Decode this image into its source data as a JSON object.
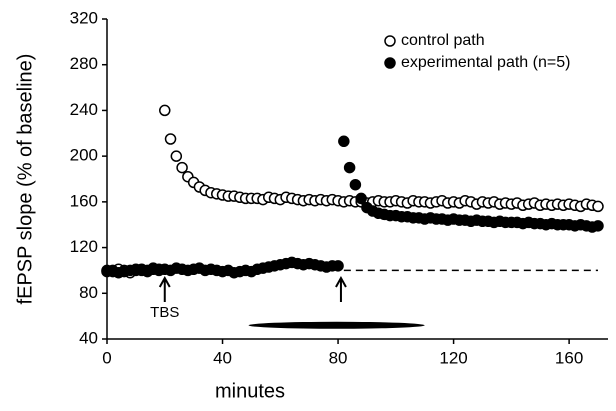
{
  "chart_data": {
    "type": "scatter",
    "x_label": "minutes",
    "y_label": "fEPSP slope (% of baseline)",
    "xlim": [
      0,
      170
    ],
    "xticks": [
      0,
      40,
      80,
      120,
      160
    ],
    "ylim": [
      40,
      320
    ],
    "yticks": [
      40,
      80,
      120,
      160,
      200,
      240,
      280,
      320
    ],
    "legend": "top-right",
    "x": [
      0,
      2,
      4,
      6,
      8,
      10,
      12,
      14,
      16,
      18,
      20,
      22,
      24,
      26,
      28,
      30,
      32,
      34,
      36,
      38,
      40,
      42,
      44,
      46,
      48,
      50,
      52,
      54,
      56,
      58,
      60,
      62,
      64,
      66,
      68,
      70,
      72,
      74,
      76,
      78,
      80,
      82,
      84,
      86,
      88,
      90,
      92,
      94,
      96,
      98,
      100,
      102,
      104,
      106,
      108,
      110,
      112,
      114,
      116,
      118,
      120,
      122,
      124,
      126,
      128,
      130,
      132,
      134,
      136,
      138,
      140,
      142,
      144,
      146,
      148,
      150,
      152,
      154,
      156,
      158,
      160,
      162,
      164,
      166,
      168,
      170
    ],
    "series": [
      {
        "name": "control path",
        "color": "#ffffff",
        "values": [
          100,
          99,
          101,
          100,
          98,
          100,
          101,
          100,
          102,
          101,
          240,
          215,
          200,
          190,
          182,
          177,
          173,
          170,
          168,
          167,
          166,
          165,
          165,
          164,
          163,
          163,
          163,
          162,
          164,
          163,
          162,
          164,
          163,
          162,
          161,
          162,
          161,
          162,
          161,
          162,
          161,
          160,
          161,
          160,
          160,
          159,
          160,
          161,
          160,
          160,
          161,
          160,
          159,
          161,
          160,
          160,
          159,
          160,
          161,
          159,
          160,
          159,
          161,
          160,
          158,
          160,
          159,
          160,
          158,
          159,
          158,
          159,
          157,
          158,
          159,
          157,
          158,
          157,
          158,
          157,
          158,
          157,
          156,
          158,
          157,
          156
        ]
      },
      {
        "name": "experimental path (n=5)",
        "color": "#000000",
        "values": [
          99,
          100,
          98,
          99,
          100,
          101,
          100,
          99,
          101,
          100,
          101,
          100,
          102,
          101,
          100,
          101,
          102,
          100,
          101,
          100,
          99,
          100,
          98,
          99,
          100,
          99,
          101,
          102,
          103,
          104,
          105,
          106,
          107,
          106,
          105,
          106,
          105,
          104,
          103,
          104,
          104,
          213,
          190,
          175,
          163,
          155,
          152,
          150,
          149,
          148,
          148,
          147,
          147,
          146,
          146,
          145,
          146,
          145,
          145,
          144,
          145,
          144,
          144,
          143,
          144,
          143,
          143,
          142,
          143,
          142,
          142,
          142,
          141,
          142,
          141,
          141,
          140,
          141,
          140,
          140,
          140,
          139,
          140,
          139,
          138,
          139
        ]
      }
    ],
    "baseline_line": {
      "value": 100,
      "x": [
        82,
        170
      ]
    },
    "arrows_x": [
      20,
      81
    ],
    "arrow_label": "TBS",
    "drug_bar": {
      "x": [
        49,
        110
      ],
      "y": 52
    }
  }
}
